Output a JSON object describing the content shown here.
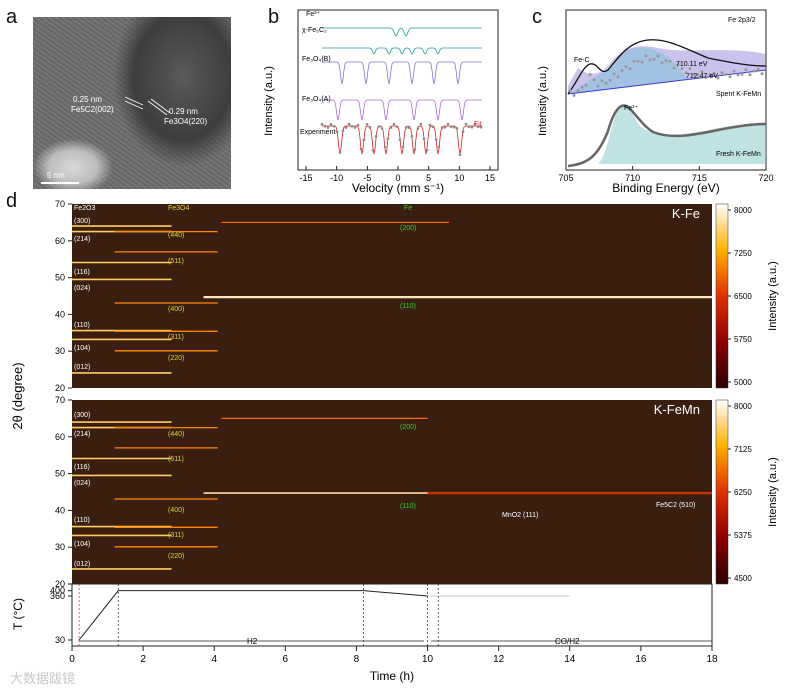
{
  "panels": {
    "a": {
      "letter": "a",
      "labels": [
        "0.25 nm",
        "Fe5C2(002)",
        "0.29 nm",
        "Fe3O4(220)"
      ],
      "scalebar": "5 nm"
    },
    "b": {
      "letter": "b",
      "ylabel": "Intensity (a.u.)",
      "xlabel": "Velocity (mm s⁻¹)",
      "xticks": [
        "-15",
        "-10",
        "-5",
        "0",
        "5",
        "10",
        "15"
      ],
      "series_labels": [
        "Fe³⁺",
        "χ-Fe₅C₂",
        "Fe₃O₄(B)",
        "Fe₃O₄(A)",
        "Experiment"
      ],
      "fit_label": "Fit"
    },
    "c": {
      "letter": "c",
      "title": "Fe 2p3/2",
      "ylabel": "Intensity (a.u.)",
      "xlabel": "Binding Energy (eV)",
      "xticks": [
        "705",
        "710",
        "715",
        "720"
      ],
      "annotations": [
        "Fe-C",
        "710.11 eV",
        "712.47 eV",
        "Spent K-FeMn",
        "Fe³⁺",
        "Fresh K-FeMn"
      ]
    },
    "d": {
      "letter": "d",
      "ylabel": "2θ (degree)",
      "yticks": [
        "70",
        "60",
        "50",
        "40",
        "30",
        "20"
      ],
      "top": {
        "name": "K-Fe",
        "colorbar": [
          "8000",
          "7250",
          "6500",
          "5750",
          "5000"
        ],
        "colorbar_label": "Intensity (a.u.)",
        "phase_headers": [
          "Fe2O3",
          "Fe3O4",
          "Fe"
        ],
        "fe2o3_planes": [
          "(300)",
          "(214)",
          "(116)",
          "(024)",
          "(110)",
          "(104)",
          "(012)"
        ],
        "fe3o4_planes": [
          "(440)",
          "(511)",
          "(400)",
          "(311)",
          "(220)"
        ],
        "fe_planes": [
          "(200)",
          "(110)"
        ]
      },
      "bottom": {
        "name": "K-FeMn",
        "colorbar": [
          "8000",
          "7125",
          "6250",
          "5375",
          "4500"
        ],
        "colorbar_label": "Intensity (a.u.)",
        "fe2o3_planes": [
          "(300)",
          "(214)",
          "(116)",
          "(024)",
          "(110)",
          "(104)",
          "(012)"
        ],
        "fe3o4_planes": [
          "(440)",
          "(511)",
          "(400)",
          "(311)",
          "(220)"
        ],
        "fe_planes": [
          "(200)",
          "(110)"
        ],
        "extra": [
          "MnO2  (111)",
          "Fe5C2 (510)"
        ]
      },
      "temp": {
        "ylabel": "T (°C)",
        "yticks": [
          "400",
          "360",
          "30"
        ],
        "segments": [
          "H2",
          "CO/H2"
        ]
      },
      "xlabel": "Time (h)",
      "xticks": [
        "0",
        "2",
        "4",
        "6",
        "8",
        "10",
        "12",
        "14",
        "16",
        "18"
      ]
    }
  },
  "watermark": "大数据跋镜",
  "colors": {
    "heatmap_bg": "#3a1e10",
    "fe2o3_label": "#ffffff",
    "fe3o4_label": "#e6d23a",
    "fe_label": "#33cc33",
    "fit_red": "#e02020",
    "xps_fill": "#7fc6c6",
    "xps_fill2": "#8c7ad6"
  }
}
